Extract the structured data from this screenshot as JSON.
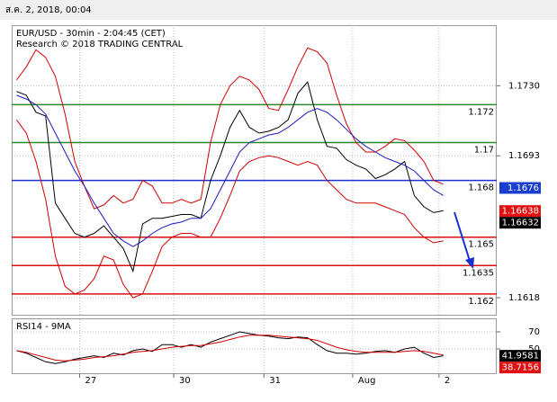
{
  "header": {
    "timestamp": "ส.ค. 2, 2018, 00:04"
  },
  "chart_data": [
    {
      "type": "line",
      "title": "EUR/USD - 30min - 2:04:45 (CET)",
      "subtitle": "Research © 2018 TRADING CENTRAL",
      "x": [
        1,
        3,
        5,
        7,
        9,
        11,
        13,
        15,
        17,
        19,
        21,
        23,
        25,
        27,
        29,
        31,
        33,
        35,
        37,
        39,
        41,
        43,
        45,
        47,
        49,
        51,
        53,
        55,
        57,
        59,
        61,
        63,
        65,
        67,
        69,
        71,
        73,
        75,
        77,
        79,
        81,
        83,
        85,
        87,
        89
      ],
      "xlim": [
        0,
        100
      ],
      "xticks": [
        {
          "value": 14,
          "label": "27"
        },
        {
          "value": 33.4,
          "label": "30"
        },
        {
          "value": 52,
          "label": "31"
        },
        {
          "value": 70.3,
          "label": "Aug"
        },
        {
          "value": 88.1,
          "label": "2"
        }
      ],
      "ylim": [
        1.1609,
        1.1762
      ],
      "yticks": [
        {
          "value": 1.173,
          "label": "1.1730"
        },
        1.1693,
        1.1618
      ],
      "series": [
        {
          "color": "#000000",
          "values": [
            1.1727,
            1.1725,
            1.1716,
            1.1714,
            1.1668,
            1.166,
            1.1652,
            1.165,
            1.1652,
            1.1656,
            1.165,
            1.1644,
            1.1632,
            1.1657,
            1.166,
            1.166,
            1.1661,
            1.1662,
            1.1662,
            1.166,
            1.168,
            1.1693,
            1.1708,
            1.1717,
            1.1708,
            1.1705,
            1.1706,
            1.1708,
            1.1712,
            1.1726,
            1.1732,
            1.1712,
            1.1698,
            1.1697,
            1.1691,
            1.1688,
            1.1686,
            1.1681,
            1.1683,
            1.1686,
            1.169,
            1.1672,
            1.1666,
            1.1663,
            1.1664
          ]
        },
        {
          "color": "#d00000",
          "values": [
            1.1733,
            1.174,
            1.1749,
            1.1745,
            1.1735,
            1.1715,
            1.169,
            1.1677,
            1.1665,
            1.1667,
            1.1672,
            1.1668,
            1.167,
            1.168,
            1.1677,
            1.1668,
            1.1668,
            1.167,
            1.1668,
            1.167,
            1.17,
            1.172,
            1.173,
            1.1735,
            1.1733,
            1.1728,
            1.1718,
            1.1717,
            1.1728,
            1.174,
            1.175,
            1.1748,
            1.1742,
            1.1725,
            1.171,
            1.17,
            1.1695,
            1.1695,
            1.1698,
            1.1702,
            1.1701,
            1.1696,
            1.169,
            1.168,
            1.1678
          ]
        },
        {
          "color": "#d00000",
          "values": [
            1.1712,
            1.1705,
            1.169,
            1.167,
            1.164,
            1.1624,
            1.162,
            1.1622,
            1.1628,
            1.164,
            1.1638,
            1.1625,
            1.1618,
            1.162,
            1.1632,
            1.1645,
            1.165,
            1.1652,
            1.1652,
            1.165,
            1.165,
            1.166,
            1.1672,
            1.1685,
            1.169,
            1.1692,
            1.1693,
            1.1692,
            1.169,
            1.1688,
            1.169,
            1.1688,
            1.168,
            1.1675,
            1.167,
            1.1668,
            1.1668,
            1.1668,
            1.1666,
            1.1664,
            1.1662,
            1.1655,
            1.165,
            1.1647,
            1.1648
          ]
        },
        {
          "color": "#1a1ac0",
          "values": [
            1.1725,
            1.1723,
            1.172,
            1.1715,
            1.1705,
            1.1695,
            1.1685,
            1.1677,
            1.1668,
            1.166,
            1.1652,
            1.1648,
            1.1645,
            1.1648,
            1.1652,
            1.1655,
            1.1657,
            1.1658,
            1.166,
            1.166,
            1.1665,
            1.1675,
            1.1685,
            1.1695,
            1.17,
            1.1702,
            1.1704,
            1.1705,
            1.1708,
            1.1712,
            1.1716,
            1.1718,
            1.1716,
            1.1712,
            1.1707,
            1.1702,
            1.1698,
            1.1695,
            1.1692,
            1.169,
            1.1688,
            1.1685,
            1.168,
            1.1675,
            1.1672
          ]
        }
      ],
      "levels": [
        {
          "value": 1.172,
          "color": "#2a8a2a"
        },
        {
          "value": 1.17,
          "color": "#2a8a2a"
        },
        {
          "value": 1.168,
          "color": "#1a2fd0"
        },
        {
          "value": 1.165,
          "color": "#d81010"
        },
        {
          "value": 1.1635,
          "color": "#d81010"
        },
        {
          "value": 1.162,
          "color": "#d81010"
        }
      ],
      "price_tags": [
        {
          "value": 1.1676,
          "color": "#1a3fd0"
        },
        {
          "value": 1.16638,
          "color": "#e01010"
        },
        {
          "value": 1.16632,
          "color": "#000000"
        }
      ]
    },
    {
      "type": "line",
      "title": "RSI14 - 9MA",
      "ylim": [
        21.6,
        84.7
      ],
      "yticks": [
        70,
        50
      ],
      "series": [
        {
          "color": "#000000",
          "values": [
            48,
            45,
            40,
            35,
            33,
            35,
            38,
            40,
            42,
            40,
            45,
            43,
            48,
            50,
            47,
            55,
            55,
            52,
            55,
            52,
            58,
            62,
            66,
            70,
            68,
            66,
            65,
            63,
            62,
            64,
            63,
            55,
            48,
            45,
            45,
            44,
            45,
            47,
            48,
            46,
            50,
            52,
            45,
            40,
            42
          ]
        },
        {
          "color": "#d00000",
          "values": [
            48,
            46,
            43,
            40,
            37,
            36,
            37,
            38,
            40,
            41,
            42,
            44,
            46,
            47,
            48,
            50,
            52,
            53,
            54,
            54,
            56,
            58,
            61,
            64,
            66,
            66,
            66,
            65,
            64,
            63,
            62,
            60,
            56,
            52,
            49,
            47,
            46,
            46,
            46,
            46,
            47,
            48,
            47,
            45,
            43
          ]
        }
      ],
      "price_tags": [
        {
          "value": 41.9581,
          "color": "#000000"
        },
        {
          "value": 38.7156,
          "color": "#e01010"
        }
      ]
    }
  ]
}
